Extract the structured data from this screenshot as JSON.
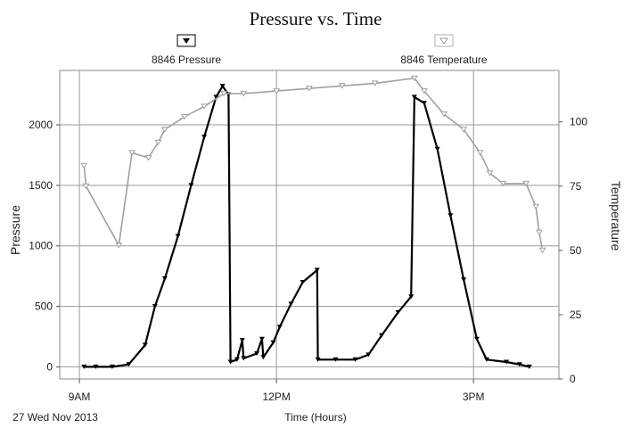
{
  "chart_data": {
    "type": "line",
    "title": "Pressure vs. Time",
    "xlabel": "Time (Hours)",
    "ylabel_left": "Pressure",
    "ylabel_right": "Temperature",
    "date_label": "27 Wed Nov 2013",
    "x_ticks": [
      {
        "label": "9AM",
        "hours": 9
      },
      {
        "label": "12PM",
        "hours": 12
      },
      {
        "label": "3PM",
        "hours": 15
      }
    ],
    "y_left": {
      "lim": [
        -100,
        2450
      ],
      "ticks": [
        0,
        500,
        1000,
        1500,
        2000
      ]
    },
    "y_right": {
      "lim": [
        0,
        120
      ],
      "ticks": [
        0,
        25,
        50,
        75,
        100
      ]
    },
    "grid": true,
    "legend_position": "top",
    "series": [
      {
        "name": "8846 Pressure",
        "axis": "left",
        "color": "#000000",
        "marker": "down-triangle-filled",
        "points": [
          [
            9.07,
            0
          ],
          [
            9.25,
            0
          ],
          [
            9.5,
            0
          ],
          [
            9.75,
            20
          ],
          [
            10.0,
            180
          ],
          [
            10.15,
            500
          ],
          [
            10.3,
            730
          ],
          [
            10.5,
            1080
          ],
          [
            10.7,
            1500
          ],
          [
            10.9,
            1900
          ],
          [
            11.08,
            2230
          ],
          [
            11.18,
            2320
          ],
          [
            11.27,
            2250
          ],
          [
            11.3,
            40
          ],
          [
            11.4,
            60
          ],
          [
            11.48,
            220
          ],
          [
            11.5,
            70
          ],
          [
            11.7,
            110
          ],
          [
            11.78,
            230
          ],
          [
            11.8,
            80
          ],
          [
            11.95,
            200
          ],
          [
            12.05,
            330
          ],
          [
            12.22,
            520
          ],
          [
            12.4,
            700
          ],
          [
            12.62,
            800
          ],
          [
            12.63,
            60
          ],
          [
            12.9,
            60
          ],
          [
            13.2,
            60
          ],
          [
            13.4,
            100
          ],
          [
            13.6,
            260
          ],
          [
            13.85,
            450
          ],
          [
            14.05,
            580
          ],
          [
            14.1,
            2230
          ],
          [
            14.25,
            2180
          ],
          [
            14.45,
            1800
          ],
          [
            14.65,
            1250
          ],
          [
            14.85,
            720
          ],
          [
            15.05,
            230
          ],
          [
            15.2,
            60
          ],
          [
            15.5,
            40
          ],
          [
            15.7,
            20
          ],
          [
            15.85,
            0
          ]
        ]
      },
      {
        "name": "8846 Temperature",
        "axis": "right",
        "color": "#a0a0a0",
        "marker": "down-triangle-open",
        "points": [
          [
            9.07,
            83
          ],
          [
            9.1,
            75
          ],
          [
            9.6,
            52
          ],
          [
            9.8,
            88
          ],
          [
            10.05,
            86
          ],
          [
            10.2,
            92
          ],
          [
            10.3,
            97
          ],
          [
            10.6,
            102
          ],
          [
            10.9,
            106
          ],
          [
            11.2,
            111
          ],
          [
            11.5,
            111
          ],
          [
            12.0,
            112
          ],
          [
            12.5,
            113
          ],
          [
            13.0,
            114
          ],
          [
            13.5,
            115
          ],
          [
            14.1,
            117
          ],
          [
            14.25,
            112
          ],
          [
            14.55,
            103
          ],
          [
            14.85,
            97
          ],
          [
            15.1,
            88
          ],
          [
            15.25,
            80
          ],
          [
            15.45,
            76
          ],
          [
            15.8,
            76
          ],
          [
            15.95,
            67
          ],
          [
            16.0,
            57
          ],
          [
            16.05,
            50
          ]
        ]
      }
    ]
  }
}
